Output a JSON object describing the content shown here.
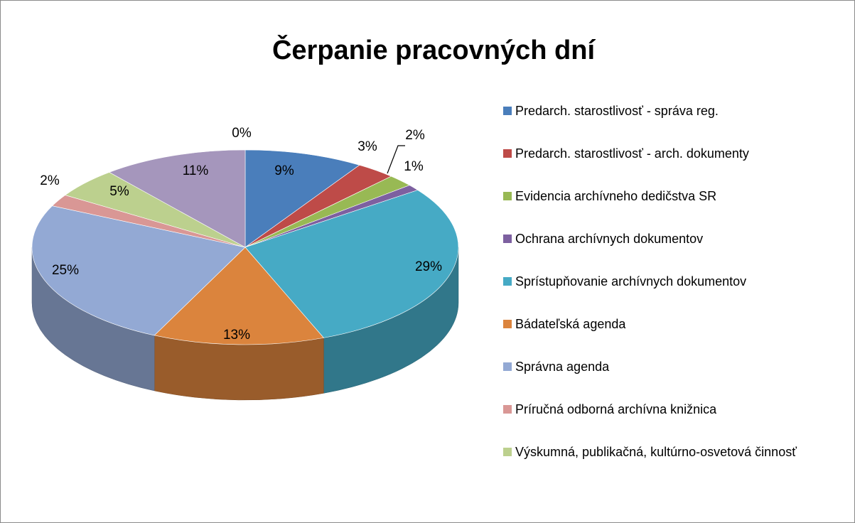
{
  "chart_data": {
    "type": "pie",
    "title": "Čerpanie pracovných dní",
    "categories": [
      "Predarch. starostlivosť - správa reg.",
      "Predarch. starostlivosť - arch. dokumenty",
      "Evidencia archívneho dedičstva SR",
      "Ochrana archívnych dokumentov",
      "Sprístupňovanie archívnych dokumentov",
      "Bádateľská agenda",
      "Správna agenda",
      "Príručná odborná archívna knižnica",
      "Výskumná, publikačná, kultúrno-osvetová činnosť",
      null,
      null
    ],
    "values": [
      9,
      3,
      2,
      1,
      29,
      13,
      25,
      2,
      5,
      11,
      0
    ],
    "value_labels": [
      "9%",
      "3%",
      "2%",
      "1%",
      "29%",
      "13%",
      "25%",
      "2%",
      "5%",
      "11%",
      "0%"
    ],
    "colors": [
      "#4a7ebb",
      "#be4b48",
      "#98b954",
      "#7d60a0",
      "#46aac5",
      "#db843d",
      "#93a9d4",
      "#d99795",
      "#bcd08e",
      "#a596bc",
      "#93c6d8"
    ],
    "legend": "right"
  }
}
